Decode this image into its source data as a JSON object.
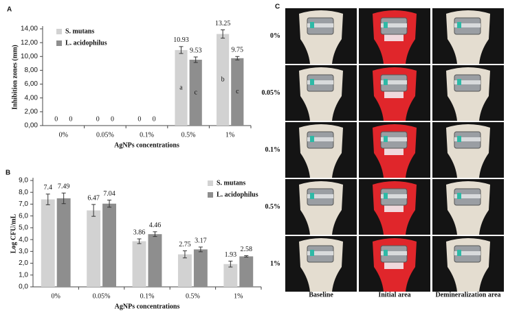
{
  "chart_data": [
    {
      "type": "bar",
      "panel_label": "A",
      "y_label": "Inhibition zones (mm)",
      "x_label": "AgNPs concentrations",
      "categories": [
        "0%",
        "0.05%",
        "0.1%",
        "0.5%",
        "1%"
      ],
      "series": [
        {
          "name": "S. mutans",
          "color": "#d2d2d2",
          "values": [
            0,
            0,
            0,
            10.93,
            13.25
          ],
          "errors": [
            0,
            0,
            0,
            0.5,
            0.6
          ],
          "letters": [
            null,
            null,
            null,
            "a",
            "b"
          ]
        },
        {
          "name": "L. acidophilus",
          "color": "#8e8e8e",
          "values": [
            0,
            0,
            0,
            9.53,
            9.75
          ],
          "errors": [
            0,
            0,
            0,
            0.4,
            0.25
          ],
          "letters": [
            null,
            null,
            null,
            "c",
            "c"
          ]
        }
      ],
      "ylim": [
        0,
        14
      ],
      "yticks": [
        {
          "value": 0,
          "label": "0,00"
        },
        {
          "value": 2,
          "label": "2,00"
        },
        {
          "value": 4,
          "label": "4,00"
        },
        {
          "value": 6,
          "label": "6,00"
        },
        {
          "value": 8,
          "label": "8,00"
        },
        {
          "value": 10,
          "label": "10,00"
        },
        {
          "value": 12,
          "label": "12,00"
        },
        {
          "value": 14,
          "label": "14,00"
        }
      ],
      "legend": "upper left",
      "grid": false
    },
    {
      "type": "bar",
      "panel_label": "B",
      "y_label": "Log CFU/mL",
      "x_label": "AgNPs concentrations",
      "categories": [
        "0%",
        "0.05%",
        "0.1%",
        "0.5%",
        "1%"
      ],
      "series": [
        {
          "name": "S. mutans",
          "color": "#d2d2d2",
          "values": [
            7.4,
            6.47,
            3.86,
            2.75,
            1.93
          ],
          "errors": [
            0.45,
            0.5,
            0.2,
            0.3,
            0.25
          ]
        },
        {
          "name": "L. acidophilus",
          "color": "#8e8e8e",
          "values": [
            7.49,
            7.04,
            4.46,
            3.17,
            2.58
          ],
          "errors": [
            0.45,
            0.3,
            0.2,
            0.2,
            0.06
          ]
        }
      ],
      "ylim": [
        0,
        9
      ],
      "yticks": [
        {
          "value": 0,
          "label": "0,0"
        },
        {
          "value": 1,
          "label": "1,0"
        },
        {
          "value": 2,
          "label": "2,0"
        },
        {
          "value": 3,
          "label": "3,0"
        },
        {
          "value": 4,
          "label": "4,0"
        },
        {
          "value": 5,
          "label": "5,0"
        },
        {
          "value": 6,
          "label": "6,0"
        },
        {
          "value": 7,
          "label": "7,0"
        },
        {
          "value": 8,
          "label": "8,0"
        },
        {
          "value": 9,
          "label": "9,0"
        }
      ],
      "legend": "upper right",
      "grid": false
    }
  ],
  "photo_panel": {
    "panel_label": "C",
    "rows": [
      "0%",
      "0.05%",
      "0.1%",
      "0.5%",
      "1%"
    ],
    "columns": [
      "Baseline",
      "Initial area",
      "Demineralization area"
    ]
  }
}
